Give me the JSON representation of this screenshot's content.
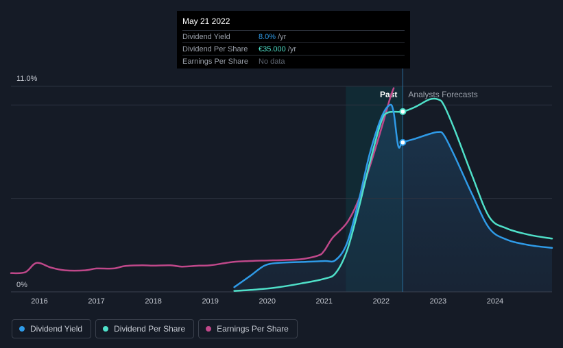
{
  "tooltip": {
    "date": "May 21 2022",
    "rows": [
      {
        "label": "Dividend Yield",
        "value": "8.0%",
        "unit": "/yr"
      },
      {
        "label": "Dividend Per Share",
        "value": "€35.000",
        "unit": "/yr"
      },
      {
        "label": "Earnings Per Share",
        "value": "No data",
        "unit": ""
      }
    ]
  },
  "legend": [
    {
      "label": "Dividend Yield",
      "color": "#2f9be8"
    },
    {
      "label": "Dividend Per Share",
      "color": "#4fe0c9"
    },
    {
      "label": "Earnings Per Share",
      "color": "#c0488a"
    }
  ],
  "chart_data": {
    "type": "line",
    "y_tick_labels": [
      "11.0%",
      "0%"
    ],
    "ylim": [
      0,
      11
    ],
    "xlim": [
      2015.5,
      2025.0
    ],
    "x_ticks": [
      2016,
      2017,
      2018,
      2019,
      2020,
      2021,
      2022,
      2023,
      2024
    ],
    "past_label": "Past",
    "forecast_label": "Analysts Forecasts",
    "divider_x": 2022.38,
    "highlight_start_x": 2021.38,
    "gridlines": [
      11.0,
      10.0,
      5.0
    ],
    "series": [
      {
        "name": "Dividend Yield",
        "color": "#2f9be8",
        "points": [
          [
            2019.42,
            0.25
          ],
          [
            2019.7,
            0.85
          ],
          [
            2019.95,
            1.4
          ],
          [
            2020.2,
            1.55
          ],
          [
            2020.6,
            1.6
          ],
          [
            2021.0,
            1.65
          ],
          [
            2021.2,
            1.7
          ],
          [
            2021.4,
            2.6
          ],
          [
            2021.6,
            4.8
          ],
          [
            2021.8,
            7.4
          ],
          [
            2022.0,
            9.3
          ],
          [
            2022.15,
            10.0
          ],
          [
            2022.22,
            9.6
          ],
          [
            2022.3,
            7.8
          ],
          [
            2022.38,
            8.0
          ],
          [
            2022.6,
            8.2
          ],
          [
            2022.85,
            8.45
          ],
          [
            2023.0,
            8.55
          ],
          [
            2023.1,
            8.4
          ],
          [
            2023.3,
            7.2
          ],
          [
            2023.6,
            5.2
          ],
          [
            2023.9,
            3.4
          ],
          [
            2024.2,
            2.8
          ],
          [
            2024.6,
            2.5
          ],
          [
            2025.0,
            2.35
          ]
        ]
      },
      {
        "name": "Dividend Per Share",
        "color": "#4fe0c9",
        "points": [
          [
            2019.42,
            0.05
          ],
          [
            2019.8,
            0.12
          ],
          [
            2020.2,
            0.25
          ],
          [
            2020.6,
            0.45
          ],
          [
            2021.0,
            0.7
          ],
          [
            2021.2,
            1.0
          ],
          [
            2021.4,
            2.2
          ],
          [
            2021.6,
            4.4
          ],
          [
            2021.8,
            6.9
          ],
          [
            2022.0,
            9.1
          ],
          [
            2022.12,
            9.6
          ],
          [
            2022.38,
            9.65
          ],
          [
            2022.6,
            9.9
          ],
          [
            2022.85,
            10.3
          ],
          [
            2023.0,
            10.3
          ],
          [
            2023.1,
            10.0
          ],
          [
            2023.3,
            8.6
          ],
          [
            2023.6,
            6.2
          ],
          [
            2023.9,
            4.0
          ],
          [
            2024.2,
            3.4
          ],
          [
            2024.6,
            3.05
          ],
          [
            2025.0,
            2.85
          ]
        ]
      },
      {
        "name": "Earnings Per Share",
        "color": "#c0488a",
        "points": [
          [
            2015.5,
            1.0
          ],
          [
            2015.75,
            1.05
          ],
          [
            2015.95,
            1.55
          ],
          [
            2016.2,
            1.3
          ],
          [
            2016.45,
            1.15
          ],
          [
            2016.8,
            1.15
          ],
          [
            2017.0,
            1.25
          ],
          [
            2017.3,
            1.25
          ],
          [
            2017.5,
            1.38
          ],
          [
            2017.8,
            1.42
          ],
          [
            2018.0,
            1.4
          ],
          [
            2018.3,
            1.42
          ],
          [
            2018.5,
            1.35
          ],
          [
            2018.8,
            1.4
          ],
          [
            2019.0,
            1.42
          ],
          [
            2019.4,
            1.6
          ],
          [
            2019.7,
            1.65
          ],
          [
            2020.0,
            1.68
          ],
          [
            2020.3,
            1.7
          ],
          [
            2020.6,
            1.75
          ],
          [
            2020.9,
            1.95
          ],
          [
            2021.0,
            2.2
          ],
          [
            2021.15,
            2.9
          ],
          [
            2021.4,
            3.7
          ],
          [
            2021.6,
            4.9
          ],
          [
            2021.8,
            6.7
          ],
          [
            2022.0,
            8.7
          ],
          [
            2022.15,
            10.3
          ],
          [
            2022.22,
            10.9
          ]
        ]
      }
    ],
    "markers": [
      {
        "series": "Dividend Yield",
        "x": 2022.38,
        "y": 8.0
      },
      {
        "series": "Dividend Per Share",
        "x": 2022.38,
        "y": 9.65
      }
    ]
  }
}
